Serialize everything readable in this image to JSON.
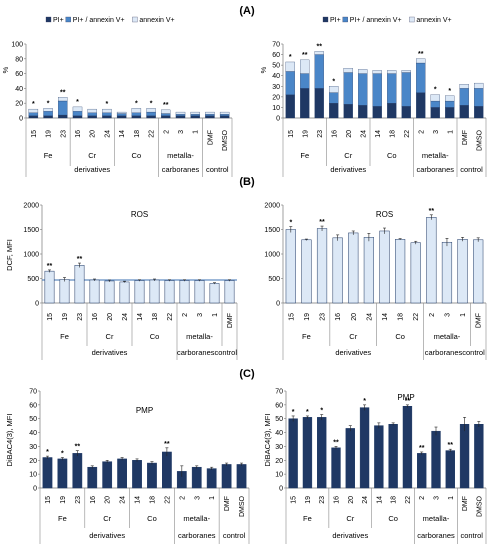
{
  "figure": {
    "labels": [
      "(A)",
      "(B)",
      "(C)"
    ]
  },
  "colors": {
    "pi": "#1f3864",
    "pi_annexin": "#4a86c8",
    "annexin": "#dce8f6",
    "bar_light": "#dce8f6",
    "bar_dark": "#1f3864",
    "hline": "#3a6fb0"
  },
  "chart_data": [
    {
      "type": "bar",
      "stacked": true,
      "panel": "A",
      "title": "",
      "ylabel": "%",
      "ylim": [
        0,
        100
      ],
      "yticks": [
        0,
        20,
        40,
        60,
        80,
        100
      ],
      "legend": [
        "PI+",
        "PI+ / annexin V+",
        "annexin V+"
      ],
      "legend_placement": "top",
      "categories": [
        "15",
        "19",
        "23",
        "16",
        "20",
        "24",
        "14",
        "18",
        "22",
        "2",
        "3",
        "1",
        "DMF",
        "DMSO"
      ],
      "groups": [
        {
          "label": "Fe",
          "from": 0,
          "to": 2
        },
        {
          "label": "Cr",
          "from": 3,
          "to": 5
        },
        {
          "label": "Co",
          "from": 6,
          "to": 8
        },
        {
          "label": "metalla-",
          "from": 9,
          "to": 11
        },
        {
          "label": "",
          "from": 12,
          "to": 13
        }
      ],
      "group_row2": [
        {
          "label": "derivatives",
          "from": 0,
          "to": 8
        },
        {
          "label": "carboranes",
          "from": 9,
          "to": 11
        },
        {
          "label": "control",
          "from": 12,
          "to": 13
        }
      ],
      "series": [
        {
          "name": "PI+",
          "values": [
            3,
            3,
            4,
            3,
            3,
            3,
            3,
            3,
            3,
            3,
            3,
            3,
            3,
            3
          ]
        },
        {
          "name": "PI+ / annexin V+",
          "values": [
            4,
            6,
            19,
            6,
            4,
            4,
            3,
            4,
            5,
            3,
            2,
            2,
            2,
            2
          ]
        },
        {
          "name": "annexin V+",
          "values": [
            5,
            4,
            5,
            6,
            5,
            5,
            2,
            6,
            5,
            5,
            3,
            3,
            3,
            3
          ]
        }
      ],
      "annotations": [
        "*",
        "*",
        "**",
        "*",
        "",
        "*",
        "",
        "*",
        "*",
        "**",
        "",
        "",
        "",
        ""
      ]
    },
    {
      "type": "bar",
      "stacked": true,
      "panel": "A",
      "title": "",
      "ylabel": "%",
      "ylim": [
        0,
        70
      ],
      "yticks": [
        0,
        10,
        20,
        30,
        40,
        50,
        60,
        70
      ],
      "legend": [
        "PI+",
        "PI+ / annexin V+",
        "annexin V+"
      ],
      "legend_placement": "top",
      "categories": [
        "15",
        "19",
        "23",
        "16",
        "20",
        "24",
        "14",
        "18",
        "22",
        "2",
        "3",
        "1",
        "DMF",
        "DMSO"
      ],
      "groups": [
        {
          "label": "Fe",
          "from": 0,
          "to": 2
        },
        {
          "label": "Cr",
          "from": 3,
          "to": 5
        },
        {
          "label": "Co",
          "from": 6,
          "to": 8
        },
        {
          "label": "metalla-",
          "from": 9,
          "to": 11
        },
        {
          "label": "",
          "from": 12,
          "to": 13
        }
      ],
      "group_row2": [
        {
          "label": "derivatives",
          "from": 0,
          "to": 8
        },
        {
          "label": "carboranes",
          "from": 9,
          "to": 11
        },
        {
          "label": "control",
          "from": 12,
          "to": 13
        }
      ],
      "series": [
        {
          "name": "PI+",
          "values": [
            22,
            28,
            28,
            14,
            13,
            12,
            11,
            14,
            11,
            24,
            10,
            10,
            12,
            11
          ]
        },
        {
          "name": "PI+ / annexin V+",
          "values": [
            22,
            14,
            32,
            10,
            30,
            30,
            31,
            28,
            32,
            28,
            6,
            6,
            16,
            17
          ]
        },
        {
          "name": "annexin V+",
          "values": [
            9,
            13,
            3,
            6,
            4,
            4,
            3,
            3,
            2,
            4,
            6,
            5,
            4,
            5
          ]
        }
      ],
      "annotations": [
        "*",
        "**",
        "**",
        "*",
        "",
        "",
        "",
        "",
        "",
        "**",
        "*",
        "*",
        "",
        ""
      ]
    },
    {
      "type": "bar",
      "panel": "B",
      "title": "ROS",
      "ylabel": "DCF, MFI",
      "ylim": [
        0,
        2000
      ],
      "yticks": [
        0,
        500,
        1000,
        1500,
        2000
      ],
      "reference_line": 470,
      "categories": [
        "15",
        "19",
        "23",
        "16",
        "20",
        "24",
        "14",
        "18",
        "22",
        "2",
        "3",
        "1",
        "DMF"
      ],
      "groups": [
        {
          "label": "Fe",
          "from": 0,
          "to": 2
        },
        {
          "label": "Cr",
          "from": 3,
          "to": 5
        },
        {
          "label": "Co",
          "from": 6,
          "to": 8
        },
        {
          "label": "metalla-",
          "from": 9,
          "to": 11
        },
        {
          "label": "",
          "from": 12,
          "to": 12
        }
      ],
      "group_row2": [
        {
          "label": "derivatives",
          "from": 0,
          "to": 8
        },
        {
          "label": "carboranescontrol",
          "from": 9,
          "to": 12
        }
      ],
      "values": [
        650,
        480,
        770,
        470,
        450,
        430,
        460,
        470,
        460,
        460,
        460,
        400,
        460
      ],
      "errors": [
        25,
        40,
        45,
        20,
        20,
        15,
        15,
        20,
        15,
        15,
        15,
        15,
        15
      ],
      "annotations": [
        "**",
        "",
        "**",
        "",
        "",
        "",
        "",
        "",
        "",
        "",
        "",
        "",
        ""
      ]
    },
    {
      "type": "bar",
      "panel": "B",
      "title": "ROS",
      "ylabel": "",
      "ylim": [
        0,
        2000
      ],
      "yticks": [
        0,
        500,
        1000,
        1500,
        2000
      ],
      "categories": [
        "15",
        "19",
        "23",
        "16",
        "20",
        "24",
        "14",
        "18",
        "22",
        "2",
        "3",
        "1",
        "DMF"
      ],
      "groups": [
        {
          "label": "Fe",
          "from": 0,
          "to": 2
        },
        {
          "label": "Cr",
          "from": 3,
          "to": 5
        },
        {
          "label": "Co",
          "from": 6,
          "to": 8
        },
        {
          "label": "metalla-",
          "from": 9,
          "to": 11
        },
        {
          "label": "",
          "from": 12,
          "to": 12
        }
      ],
      "group_row2": [
        {
          "label": "derivatives",
          "from": 0,
          "to": 8
        },
        {
          "label": "carboranescontrol",
          "from": 9,
          "to": 12
        }
      ],
      "values": [
        1500,
        1290,
        1520,
        1330,
        1430,
        1340,
        1470,
        1300,
        1230,
        1750,
        1240,
        1300,
        1290
      ],
      "errors": [
        60,
        15,
        50,
        60,
        40,
        80,
        60,
        15,
        30,
        50,
        80,
        40,
        40
      ],
      "annotations": [
        "*",
        "",
        "**",
        "",
        "",
        "",
        "",
        "",
        "",
        "**",
        "",
        "",
        ""
      ]
    },
    {
      "type": "bar",
      "panel": "C",
      "title": "PMP",
      "ylabel": "DiBAC4(3), MFI",
      "ylim": [
        0,
        70
      ],
      "yticks": [
        0,
        10,
        20,
        30,
        40,
        50,
        60,
        70
      ],
      "categories": [
        "15",
        "19",
        "23",
        "16",
        "20",
        "24",
        "14",
        "18",
        "22",
        "2",
        "3",
        "1",
        "DMF",
        "DMSO"
      ],
      "groups": [
        {
          "label": "Fe",
          "from": 0,
          "to": 2
        },
        {
          "label": "Cr",
          "from": 3,
          "to": 5
        },
        {
          "label": "Co",
          "from": 6,
          "to": 8
        },
        {
          "label": "metalla-",
          "from": 9,
          "to": 11
        },
        {
          "label": "",
          "from": 12,
          "to": 13
        }
      ],
      "group_row2": [
        {
          "label": "derivatives",
          "from": 0,
          "to": 8
        },
        {
          "label": "carboranes",
          "from": 9,
          "to": 11
        },
        {
          "label": "control",
          "from": 12,
          "to": 13
        }
      ],
      "values": [
        22,
        21,
        25,
        15,
        19,
        21,
        20,
        18,
        26,
        12,
        15,
        14,
        17,
        17
      ],
      "errors": [
        1,
        1,
        2,
        1,
        1,
        1,
        1,
        1,
        3,
        4,
        1,
        1,
        1,
        1
      ],
      "annotations": [
        "*",
        "*",
        "**",
        "",
        "",
        "",
        "",
        "",
        "**",
        "",
        "",
        "",
        "",
        ""
      ]
    },
    {
      "type": "bar",
      "panel": "C",
      "title": "PMP",
      "ylabel": "DiBAC4(3), MFI",
      "ylim": [
        0,
        70
      ],
      "yticks": [
        0,
        10,
        20,
        30,
        40,
        50,
        60,
        70
      ],
      "categories": [
        "15",
        "19",
        "23",
        "16",
        "20",
        "24",
        "14",
        "18",
        "22",
        "2",
        "3",
        "1",
        "DMF",
        "DMSO"
      ],
      "groups": [
        {
          "label": "Fe",
          "from": 0,
          "to": 2
        },
        {
          "label": "Cr",
          "from": 3,
          "to": 5
        },
        {
          "label": "Co",
          "from": 6,
          "to": 8
        },
        {
          "label": "metalla-",
          "from": 9,
          "to": 11
        },
        {
          "label": "",
          "from": 12,
          "to": 13
        }
      ],
      "group_row2": [
        {
          "label": "derivatives",
          "from": 0,
          "to": 8
        },
        {
          "label": "carboranes",
          "from": 9,
          "to": 11
        },
        {
          "label": "control",
          "from": 12,
          "to": 13
        }
      ],
      "values": [
        50,
        51,
        51,
        29,
        43,
        58,
        45,
        46,
        59,
        25,
        41,
        27,
        46,
        46
      ],
      "errors": [
        2,
        1,
        2,
        1,
        2,
        2,
        2,
        1,
        1,
        1,
        3,
        1,
        5,
        2
      ],
      "annotations": [
        "*",
        "*",
        "*",
        "**",
        "",
        "*",
        "",
        "",
        "**",
        "**",
        "",
        "**",
        "",
        ""
      ]
    }
  ]
}
